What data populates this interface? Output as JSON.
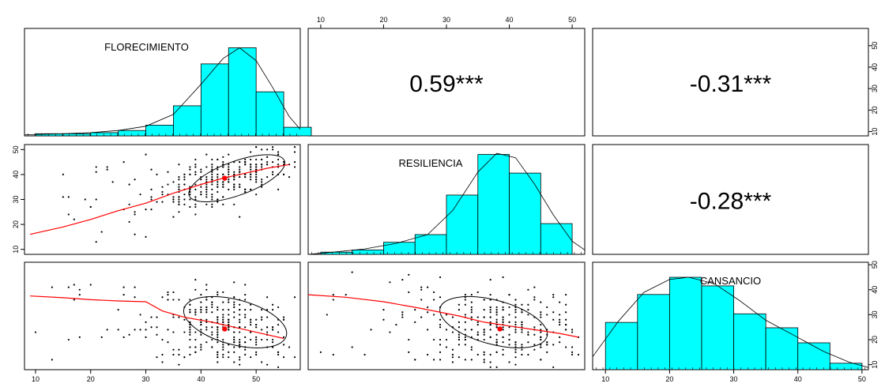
{
  "chart_data": {
    "type": "pairs-panel",
    "variables": [
      "FLORECIMIENTO",
      "RESILIENCIA",
      "CANSANCIO"
    ],
    "correlations": [
      {
        "pair": [
          "FLORECIMIENTO",
          "RESILIENCIA"
        ],
        "label": "0.59***",
        "r": 0.59
      },
      {
        "pair": [
          "FLORECIMIENTO",
          "CANSANCIO"
        ],
        "label": "-0.31***",
        "r": -0.31
      },
      {
        "pair": [
          "RESILIENCIA",
          "CANSANCIO"
        ],
        "label": "-0.28***",
        "r": -0.28
      }
    ],
    "axes": {
      "FLORECIMIENTO": {
        "ticks": [
          "10",
          "20",
          "30",
          "40",
          "50"
        ],
        "lim": [
          8,
          58
        ]
      },
      "RESILIENCIA": {
        "ticks": [
          "10",
          "20",
          "30",
          "40",
          "50"
        ],
        "lim": [
          8,
          52
        ]
      },
      "CANSANCIO": {
        "ticks": [
          "10",
          "20",
          "30",
          "40",
          "50"
        ],
        "lim": [
          8,
          51
        ]
      }
    },
    "histograms": {
      "FLORECIMIENTO": {
        "bins": [
          [
            10,
            15
          ],
          [
            15,
            20
          ],
          [
            20,
            25
          ],
          [
            25,
            30
          ],
          [
            30,
            35
          ],
          [
            35,
            40
          ],
          [
            40,
            45
          ],
          [
            45,
            50
          ],
          [
            50,
            55
          ],
          [
            55,
            60
          ]
        ],
        "heights": [
          0.02,
          0.02,
          0.03,
          0.05,
          0.1,
          0.28,
          0.67,
          0.82,
          0.41,
          0.08
        ],
        "density": [
          [
            8,
            0.01
          ],
          [
            15,
            0.02
          ],
          [
            20,
            0.03
          ],
          [
            25,
            0.05
          ],
          [
            30,
            0.09
          ],
          [
            35,
            0.2
          ],
          [
            40,
            0.48
          ],
          [
            44,
            0.72
          ],
          [
            47,
            0.82
          ],
          [
            50,
            0.7
          ],
          [
            53,
            0.45
          ],
          [
            56,
            0.18
          ],
          [
            58,
            0.06
          ]
        ],
        "fill": "#00ffff"
      },
      "RESILIENCIA": {
        "bins": [
          [
            10,
            15
          ],
          [
            15,
            20
          ],
          [
            20,
            25
          ],
          [
            25,
            30
          ],
          [
            30,
            35
          ],
          [
            35,
            40
          ],
          [
            40,
            45
          ],
          [
            45,
            50
          ]
        ],
        "heights": [
          0.02,
          0.04,
          0.11,
          0.18,
          0.54,
          0.91,
          0.74,
          0.28
        ],
        "density": [
          [
            8,
            0.0
          ],
          [
            12,
            0.02
          ],
          [
            17,
            0.05
          ],
          [
            22,
            0.1
          ],
          [
            27,
            0.18
          ],
          [
            31,
            0.4
          ],
          [
            35,
            0.75
          ],
          [
            38,
            0.92
          ],
          [
            41,
            0.88
          ],
          [
            44,
            0.64
          ],
          [
            47,
            0.36
          ],
          [
            50,
            0.12
          ],
          [
            52,
            0.04
          ]
        ],
        "fill": "#00ffff"
      },
      "CANSANCIO": {
        "bins": [
          [
            10,
            15
          ],
          [
            15,
            20
          ],
          [
            20,
            25
          ],
          [
            25,
            30
          ],
          [
            30,
            35
          ],
          [
            35,
            40
          ],
          [
            40,
            45
          ],
          [
            45,
            50
          ]
        ],
        "heights": [
          0.44,
          0.7,
          0.86,
          0.78,
          0.52,
          0.39,
          0.25,
          0.06
        ],
        "density": [
          [
            8,
            0.12
          ],
          [
            12,
            0.45
          ],
          [
            16,
            0.72
          ],
          [
            20,
            0.84
          ],
          [
            23,
            0.86
          ],
          [
            27,
            0.8
          ],
          [
            31,
            0.64
          ],
          [
            35,
            0.46
          ],
          [
            40,
            0.3
          ],
          [
            44,
            0.17
          ],
          [
            48,
            0.07
          ],
          [
            51,
            0.02
          ]
        ],
        "fill": "#00ffff"
      }
    },
    "scatters": {
      "RESILIENCIA_vs_FLORECIMIENTO": {
        "x": "FLORECIMIENTO",
        "y": "RESILIENCIA",
        "mean": [
          44.3,
          38.5
        ],
        "loess": [
          [
            9,
            16
          ],
          [
            15,
            19
          ],
          [
            20,
            22
          ],
          [
            25,
            25.5
          ],
          [
            30,
            28.5
          ],
          [
            35,
            32.5
          ],
          [
            40,
            36
          ],
          [
            44,
            38.5
          ],
          [
            48,
            40.5
          ],
          [
            52,
            42.5
          ],
          [
            56,
            44
          ]
        ],
        "ellipse": {
          "center": [
            46.5,
            38.5
          ],
          "rx": 9.2,
          "ry": 6.8,
          "rotation_deg": 20
        }
      },
      "CANSANCIO_vs_FLORECIMIENTO": {
        "x": "FLORECIMIENTO",
        "y": "CANSANCIO",
        "mean": [
          44.3,
          24.3
        ],
        "loess": [
          [
            9,
            37.5
          ],
          [
            15,
            36.8
          ],
          [
            20,
            36
          ],
          [
            25,
            35.5
          ],
          [
            30,
            35.2
          ],
          [
            33,
            31.5
          ],
          [
            37,
            29
          ],
          [
            42,
            27
          ],
          [
            46,
            25
          ],
          [
            50,
            23
          ],
          [
            55,
            20.5
          ]
        ],
        "ellipse": {
          "center": [
            46.2,
            27
          ],
          "rx": 9.6,
          "ry": 9.0,
          "rotation_deg": -15
        }
      },
      "CANSANCIO_vs_RESILIENCIA": {
        "x": "RESILIENCIA",
        "y": "CANSANCIO",
        "mean": [
          38.5,
          24.3
        ],
        "loess": [
          [
            8,
            38
          ],
          [
            14,
            37
          ],
          [
            20,
            35.2
          ],
          [
            26,
            32.5
          ],
          [
            32,
            29.5
          ],
          [
            36,
            27
          ],
          [
            40,
            25.5
          ],
          [
            44,
            24
          ],
          [
            48,
            22.5
          ],
          [
            51,
            21
          ]
        ],
        "ellipse": {
          "center": [
            37.5,
            27
          ],
          "rx": 8.8,
          "ry": 8.8,
          "rotation_deg": -15
        }
      }
    },
    "style": {
      "points": "#000000",
      "fit_line": "#ff0000",
      "mean_point": "#ff0000",
      "ellipse": "#000000",
      "hist_fill": "#00ffff"
    }
  }
}
